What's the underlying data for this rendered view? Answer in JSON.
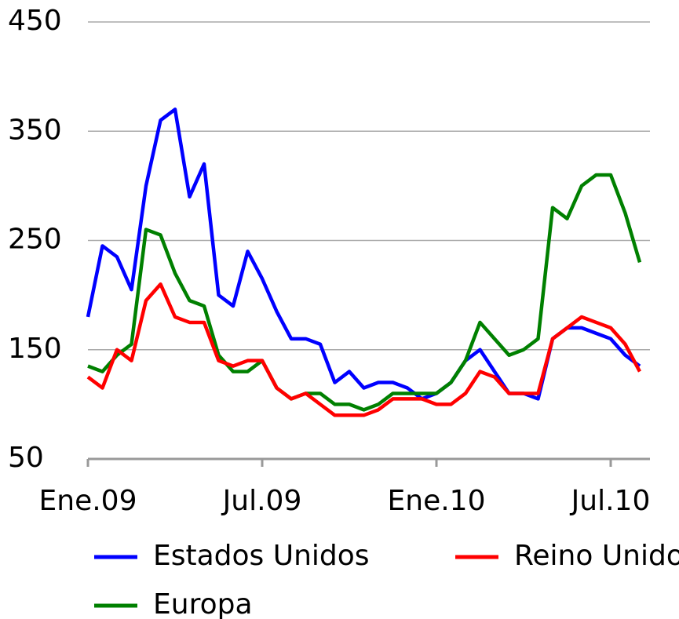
{
  "chart_data": {
    "type": "line",
    "categories": [
      "Ene.09",
      null,
      null,
      null,
      null,
      null,
      null,
      null,
      null,
      null,
      null,
      null,
      "Jul.09",
      null,
      null,
      null,
      null,
      null,
      null,
      null,
      null,
      null,
      null,
      null,
      "Ene.10",
      null,
      null,
      null,
      null,
      null,
      null,
      null,
      null,
      null,
      null,
      null,
      "Jul.10",
      null,
      null
    ],
    "series": [
      {
        "name": "Estados Unidos",
        "color": "#0000ff",
        "values": [
          180,
          245,
          235,
          205,
          300,
          360,
          370,
          290,
          320,
          200,
          190,
          240,
          215,
          185,
          160,
          160,
          155,
          120,
          130,
          115,
          120,
          120,
          115,
          105,
          110,
          120,
          140,
          150,
          130,
          110,
          110,
          105,
          160,
          170,
          170,
          165,
          160,
          145,
          135
        ]
      },
      {
        "name": "Europa",
        "color": "#008000",
        "values": [
          135,
          130,
          145,
          155,
          260,
          255,
          220,
          195,
          190,
          145,
          130,
          130,
          140,
          115,
          105,
          110,
          110,
          100,
          100,
          95,
          100,
          110,
          110,
          110,
          110,
          120,
          140,
          175,
          160,
          145,
          150,
          160,
          280,
          270,
          300,
          310,
          310,
          275,
          230
        ]
      },
      {
        "name": "Reino Unido",
        "color": "#ff0000",
        "values": [
          125,
          115,
          150,
          140,
          195,
          210,
          180,
          175,
          175,
          140,
          135,
          140,
          140,
          115,
          105,
          110,
          100,
          90,
          90,
          90,
          95,
          105,
          105,
          105,
          100,
          100,
          110,
          130,
          125,
          110,
          110,
          110,
          160,
          170,
          180,
          175,
          170,
          155,
          130
        ]
      }
    ],
    "ylim": [
      50,
      450
    ],
    "yticks": [
      50,
      150,
      250,
      350,
      450
    ],
    "grid": true
  }
}
